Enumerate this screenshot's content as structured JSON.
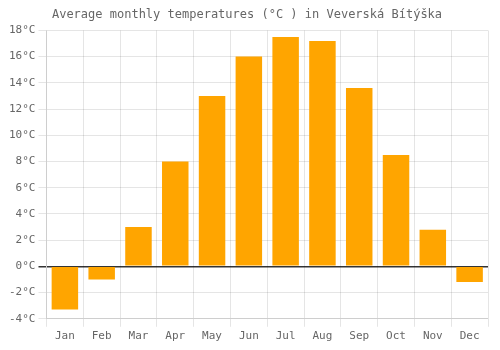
{
  "chart_data": {
    "type": "bar",
    "title": "Average monthly temperatures (°C ) in Veverská Bítýška",
    "categories": [
      "Jan",
      "Feb",
      "Mar",
      "Apr",
      "May",
      "Jun",
      "Jul",
      "Aug",
      "Sep",
      "Oct",
      "Nov",
      "Dec"
    ],
    "values": [
      -3.3,
      -1.0,
      3.0,
      8.0,
      13.0,
      16.0,
      17.5,
      17.2,
      13.6,
      8.5,
      2.8,
      -1.2
    ],
    "color": "#FFA500",
    "ylim": [
      -4,
      18
    ],
    "yticks": [
      {
        "value": -4,
        "label": "-4°C"
      },
      {
        "value": -2,
        "label": "-2°C"
      },
      {
        "value": 0,
        "label": "0°C"
      },
      {
        "value": 2,
        "label": "2°C"
      },
      {
        "value": 4,
        "label": "4°C"
      },
      {
        "value": 6,
        "label": "6°C"
      },
      {
        "value": 8,
        "label": "8°C"
      },
      {
        "value": 10,
        "label": "10°C"
      },
      {
        "value": 12,
        "label": "12°C"
      },
      {
        "value": 14,
        "label": "14°C"
      },
      {
        "value": 16,
        "label": "16°C"
      },
      {
        "value": 18,
        "label": "18°C"
      }
    ],
    "grid": true
  }
}
